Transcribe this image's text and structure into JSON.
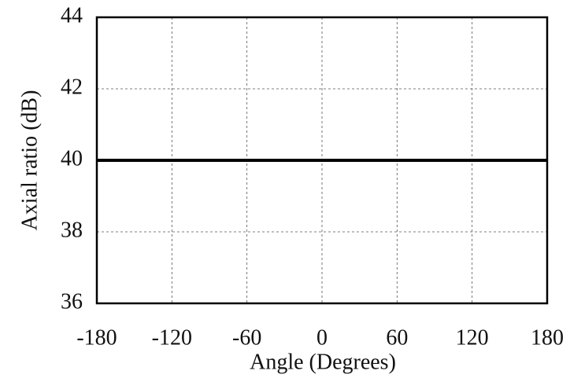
{
  "chart_data": {
    "type": "line",
    "x_label": "Angle (Degrees)",
    "y_label": "Axial ratio (dB)",
    "x": [
      -180,
      180
    ],
    "series": [
      {
        "name": "Axial ratio",
        "color": "#000000",
        "values": [
          40,
          40
        ]
      }
    ],
    "xlim": [
      -180,
      180
    ],
    "xticks": [
      -180,
      -120,
      -60,
      0,
      60,
      120,
      180
    ],
    "ylim": [
      36,
      44
    ],
    "yticks": [
      36,
      38,
      40,
      42,
      44
    ],
    "grid": true
  }
}
